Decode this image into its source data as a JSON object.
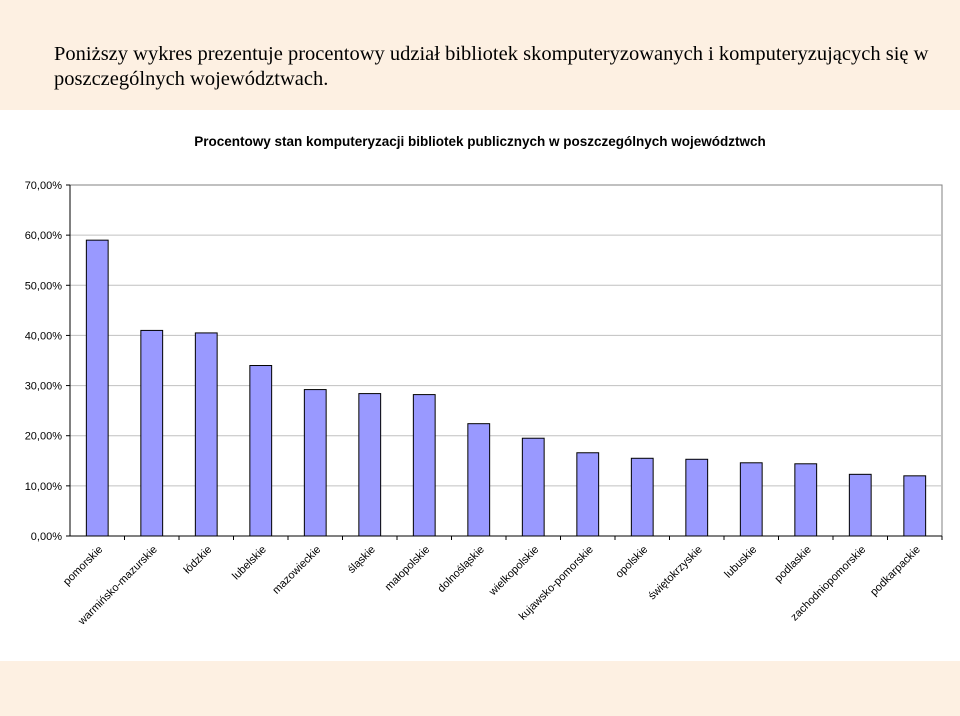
{
  "intro_text": "Poniższy wykres prezentuje procentowy udział bibliotek skomputeryzowanych i komputeryzujących się w poszczególnych województwach.",
  "colors": {
    "band": "#fdf0e2",
    "bar_fill": "#9999ff",
    "bar_stroke": "#000000",
    "grid": "#c0c0c0"
  },
  "chart_data": {
    "type": "bar",
    "title": "Procentowy stan komputeryzacji bibliotek publicznych w poszczególnych województwch",
    "xlabel": "",
    "ylabel": "",
    "ylim": [
      0,
      70
    ],
    "yticks": [
      0,
      10,
      20,
      30,
      40,
      50,
      60,
      70
    ],
    "ytick_labels": [
      "0,00%",
      "10,00%",
      "20,00%",
      "30,00%",
      "40,00%",
      "50,00%",
      "60,00%",
      "70,00%"
    ],
    "grid": true,
    "legend": "none",
    "categories": [
      "pomorskie",
      "warmińsko-mazurskie",
      "łódzkie",
      "lubelskie",
      "mazowieckie",
      "śląskie",
      "małopolskie",
      "dolnośląskie",
      "wielkopolskie",
      "kujawsko-pomorskie",
      "opolskie",
      "świętokrzyskie",
      "lubuskie",
      "podlaskie",
      "zachodniopomorskie",
      "podkarpackie"
    ],
    "values": [
      59,
      41,
      40.5,
      34,
      29.2,
      28.4,
      28.2,
      22.4,
      19.5,
      16.6,
      15.5,
      15.3,
      14.6,
      14.4,
      12.3,
      12
    ]
  }
}
